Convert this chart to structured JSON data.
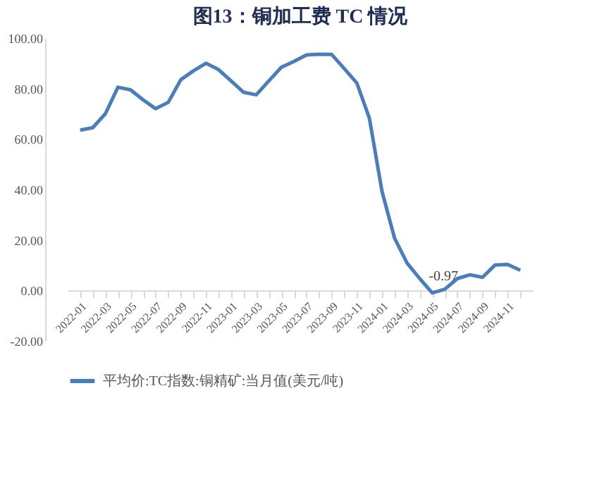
{
  "chart_data": {
    "type": "line",
    "title": "图13：铜加工费 TC 情况",
    "categories": [
      "2022-01",
      null,
      "2022-03",
      null,
      "2022-05",
      null,
      "2022-07",
      null,
      "2022-09",
      null,
      "2022-11",
      null,
      "2023-01",
      null,
      "2023-03",
      null,
      "2023-05",
      null,
      "2023-07",
      null,
      "2023-09",
      null,
      "2023-11",
      null,
      "2024-01",
      null,
      "2024-03",
      null,
      "2024-05",
      null,
      "2024-07",
      null,
      "2024-09",
      null,
      "2024-11",
      null
    ],
    "series": [
      {
        "name": "平均价:TC指数:铜精矿:当月值(美元/吨)",
        "color": "#4a7ebb",
        "values": [
          63.5,
          64.5,
          70,
          80.5,
          79.5,
          75.5,
          72,
          74.5,
          83.5,
          87,
          90,
          87.5,
          83,
          78.5,
          77.5,
          83,
          88.4,
          90.7,
          93.3,
          93.6,
          93.5,
          87.9,
          82.2,
          68.2,
          39.3,
          20.7,
          10.8,
          4.7,
          -0.97,
          0.5,
          4.7,
          6.2,
          5.2,
          10.1,
          10.3,
          8
        ],
        "value_labels": [
          null,
          null,
          null,
          null,
          null,
          null,
          null,
          null,
          null,
          null,
          null,
          null,
          null,
          null,
          null,
          null,
          null,
          null,
          null,
          null,
          null,
          null,
          null,
          null,
          null,
          null,
          null,
          null,
          "-0.97",
          null,
          null,
          null,
          null,
          null,
          null,
          null
        ]
      }
    ],
    "ylim": [
      -20,
      100
    ],
    "yticks": [
      {
        "value": -20,
        "label": "-20.00"
      },
      {
        "value": 0,
        "label": "0.00"
      },
      {
        "value": 20,
        "label": "20.00"
      },
      {
        "value": 40,
        "label": "40.00"
      },
      {
        "value": 60,
        "label": "60.00"
      },
      {
        "value": 80,
        "label": "80.00"
      },
      {
        "value": 100,
        "label": "100.00"
      }
    ],
    "grid": false,
    "legend": "bottom",
    "marker": "none",
    "line_style": "solid"
  }
}
